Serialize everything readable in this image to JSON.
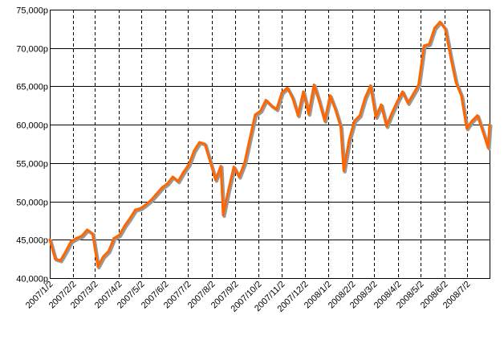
{
  "chart_data": {
    "type": "line",
    "title": "",
    "xlabel": "",
    "ylabel": "",
    "ylim": [
      40000,
      75000
    ],
    "yticks": [
      40000,
      45000,
      50000,
      55000,
      60000,
      65000,
      70000,
      75000
    ],
    "ytick_labels": [
      "40,000p",
      "45,000p",
      "50,000p",
      "55,000p",
      "60,000p",
      "65,000p",
      "70,000p",
      "75,000p"
    ],
    "xlim": [
      "2007/1/2",
      "2008/7/31"
    ],
    "xtick_labels": [
      "2007/1/2",
      "2007/2/2",
      "2007/3/2",
      "2007/4/2",
      "2007/5/2",
      "2007/6/2",
      "2007/7/2",
      "2007/8/2",
      "2007/9/2",
      "2007/10/2",
      "2007/11/2",
      "2007/12/2",
      "2008/1/2",
      "2008/2/2",
      "2008/3/2",
      "2008/4/2",
      "2008/5/2",
      "2008/6/2",
      "2008/7/2"
    ],
    "vertical_grid": "dashed",
    "horizontal_grid": "solid",
    "series_color": "#ff6600",
    "series_shadow_color": "#999999",
    "series": [
      {
        "x": [
          "2007/1/2",
          "2007/1/9",
          "2007/1/16",
          "2007/1/23",
          "2007/1/30",
          "2007/2/6",
          "2007/2/13",
          "2007/2/20",
          "2007/2/27",
          "2007/3/6",
          "2007/3/13",
          "2007/3/20",
          "2007/3/27",
          "2007/4/3",
          "2007/4/10",
          "2007/4/17",
          "2007/4/24",
          "2007/5/1",
          "2007/5/8",
          "2007/5/15",
          "2007/5/22",
          "2007/5/29",
          "2007/6/5",
          "2007/6/12",
          "2007/6/19",
          "2007/6/26",
          "2007/7/3",
          "2007/7/10",
          "2007/7/17",
          "2007/7/24",
          "2007/7/31",
          "2007/8/7",
          "2007/8/14",
          "2007/8/17",
          "2007/8/24",
          "2007/8/31",
          "2007/9/7",
          "2007/9/14",
          "2007/9/21",
          "2007/9/28",
          "2007/10/5",
          "2007/10/12",
          "2007/10/19",
          "2007/10/26",
          "2007/11/2",
          "2007/11/9",
          "2007/11/16",
          "2007/11/23",
          "2007/11/30",
          "2007/12/7",
          "2007/12/14",
          "2007/12/21",
          "2007/12/28",
          "2008/1/4",
          "2008/1/11",
          "2008/1/18",
          "2008/1/22",
          "2008/1/29",
          "2008/2/5",
          "2008/2/12",
          "2008/2/19",
          "2008/2/26",
          "2008/3/4",
          "2008/3/11",
          "2008/3/18",
          "2008/3/25",
          "2008/4/1",
          "2008/4/8",
          "2008/4/15",
          "2008/4/22",
          "2008/4/29",
          "2008/5/6",
          "2008/5/13",
          "2008/5/20",
          "2008/5/27",
          "2008/6/3",
          "2008/6/10",
          "2008/6/17",
          "2008/6/24",
          "2008/7/1",
          "2008/7/8",
          "2008/7/15",
          "2008/7/22",
          "2008/7/29",
          "2008/7/31"
        ],
        "y": [
          45000,
          42500,
          42300,
          43500,
          44800,
          45200,
          45500,
          46300,
          45800,
          41500,
          42800,
          43500,
          45200,
          45600,
          46800,
          47800,
          48900,
          49100,
          49600,
          50200,
          51000,
          51800,
          52300,
          53200,
          52600,
          53800,
          54800,
          56600,
          57700,
          57500,
          55200,
          52800,
          54600,
          48200,
          51500,
          54500,
          53200,
          55000,
          58200,
          61300,
          61800,
          63200,
          62500,
          62000,
          64200,
          64800,
          63500,
          61200,
          64300,
          61400,
          65200,
          63000,
          60500,
          63800,
          62000,
          59700,
          54000,
          58000,
          60500,
          61200,
          63500,
          65100,
          61000,
          62600,
          59800,
          61500,
          63000,
          64300,
          62800,
          64000,
          65200,
          70300,
          70500,
          72600,
          73400,
          72500,
          68800,
          65500,
          63800,
          59500,
          60500,
          61200,
          59200,
          57000,
          60000
        ]
      }
    ]
  }
}
